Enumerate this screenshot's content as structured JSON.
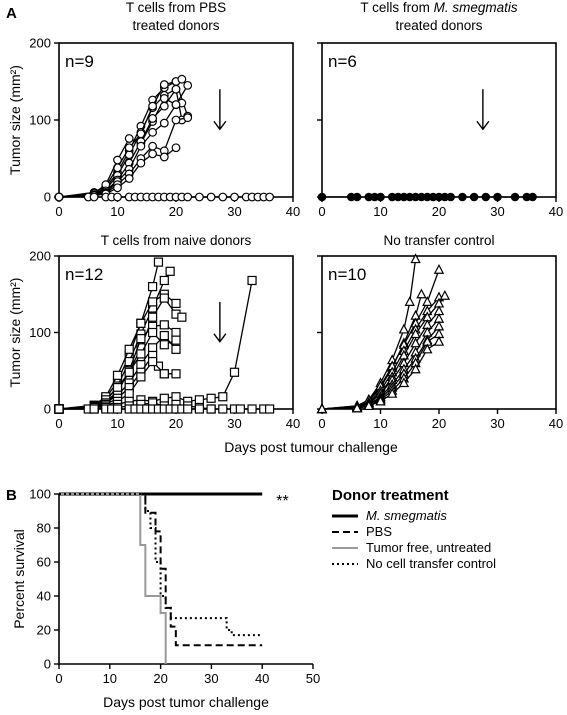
{
  "panel_a_label": "A",
  "panel_b_label": "B",
  "shared_xlabel_a": "Days post tumour challenge",
  "chart_data": [
    {
      "type": "line",
      "title_lines": [
        "T cells from PBS",
        "treated donors"
      ],
      "title_italic": "",
      "ylabel": "Tumor size (mm²)",
      "xlabel": "",
      "xlim": [
        0,
        40
      ],
      "ylim": [
        0,
        200
      ],
      "xticks": [
        0,
        10,
        20,
        30,
        40
      ],
      "yticks": [
        0,
        100,
        200
      ],
      "annotation": "n=9",
      "arrow_day": 27.5,
      "marker": "circle-open",
      "series": [
        {
          "x": [
            0,
            6,
            8,
            10,
            12,
            14,
            16,
            18,
            20,
            22
          ],
          "y": [
            0,
            4,
            12,
            32,
            60,
            92,
            126,
            142,
            150,
            105
          ]
        },
        {
          "x": [
            0,
            6,
            8,
            10,
            12,
            14,
            16,
            18,
            20
          ],
          "y": [
            0,
            3,
            10,
            28,
            55,
            84,
            116,
            132,
            140
          ]
        },
        {
          "x": [
            0,
            6,
            8,
            10,
            12,
            14,
            16,
            18,
            20,
            21
          ],
          "y": [
            0,
            6,
            14,
            38,
            64,
            82,
            118,
            146,
            150,
            153
          ]
        },
        {
          "x": [
            0,
            6,
            8,
            10,
            12,
            14,
            16,
            18,
            20,
            21
          ],
          "y": [
            0,
            5,
            16,
            48,
            76,
            70,
            98,
            128,
            120,
            122
          ]
        },
        {
          "x": [
            0,
            6,
            8,
            10,
            12,
            14,
            16,
            18,
            20,
            21
          ],
          "y": [
            0,
            2,
            8,
            22,
            44,
            72,
            102,
            118,
            140,
            100
          ]
        },
        {
          "x": [
            0,
            6,
            8,
            10,
            12,
            14,
            16,
            18,
            20,
            22
          ],
          "y": [
            0,
            3,
            6,
            20,
            36,
            66,
            84,
            96,
            120,
            145
          ]
        },
        {
          "x": [
            0,
            6,
            8,
            10,
            12,
            14,
            16,
            18,
            20,
            22
          ],
          "y": [
            0,
            2,
            5,
            16,
            30,
            50,
            66,
            60,
            100,
            103
          ]
        },
        {
          "x": [
            0,
            6,
            8,
            10,
            12,
            14,
            16,
            18,
            20
          ],
          "y": [
            0,
            2,
            4,
            12,
            24,
            44,
            56,
            52,
            64
          ]
        },
        {
          "x": [
            0,
            5,
            6,
            8,
            9,
            10,
            12,
            13,
            14,
            15,
            16,
            17,
            18,
            19,
            20,
            21,
            22,
            24,
            26,
            28,
            30,
            32,
            33,
            34,
            35,
            36
          ],
          "y": [
            0,
            0,
            0,
            0,
            0,
            0,
            0,
            0,
            0,
            0,
            0,
            0,
            0,
            0,
            0,
            0,
            0,
            0,
            0,
            0,
            0,
            0,
            0,
            0,
            0,
            0
          ]
        }
      ]
    },
    {
      "type": "line",
      "title_lines": [
        "T cells from ",
        "treated donors"
      ],
      "title_italic": "M. smegmatis",
      "ylabel": "",
      "xlabel": "",
      "xlim": [
        0,
        40
      ],
      "ylim": [
        0,
        200
      ],
      "xticks": [
        0,
        10,
        20,
        30,
        40
      ],
      "yticks": [
        0,
        100,
        200
      ],
      "annotation": "n=6",
      "arrow_day": 27.5,
      "marker": "circle-filled",
      "series": [
        {
          "x": [
            0,
            5,
            6,
            8,
            9,
            10,
            12,
            13,
            14,
            15,
            16,
            17,
            18,
            19,
            20,
            21,
            22,
            24,
            26,
            28,
            30,
            33,
            35,
            36
          ],
          "y": [
            0,
            0,
            0,
            0,
            0,
            0,
            0,
            0,
            0,
            0,
            0,
            0,
            0,
            0,
            0,
            0,
            0,
            0,
            0,
            0,
            0,
            0,
            0,
            0
          ]
        }
      ]
    },
    {
      "type": "line",
      "title_lines": [
        "T cells from naive donors"
      ],
      "title_italic": "",
      "ylabel": "Tumor size (mm²)",
      "xlabel": "",
      "xlim": [
        0,
        40
      ],
      "ylim": [
        0,
        200
      ],
      "xticks": [
        0,
        10,
        20,
        30,
        40
      ],
      "yticks": [
        0,
        100,
        200
      ],
      "annotation": "n=12",
      "arrow_day": 27.5,
      "marker": "square-open",
      "series": [
        {
          "x": [
            0,
            6,
            8,
            10,
            12,
            14,
            16,
            17
          ],
          "y": [
            0,
            4,
            14,
            36,
            70,
            112,
            160,
            192
          ]
        },
        {
          "x": [
            0,
            6,
            8,
            10,
            12,
            14,
            16,
            18,
            19
          ],
          "y": [
            0,
            3,
            10,
            30,
            62,
            98,
            132,
            168,
            180
          ]
        },
        {
          "x": [
            0,
            6,
            8,
            10,
            12,
            14,
            16,
            18,
            20
          ],
          "y": [
            0,
            5,
            16,
            44,
            78,
            112,
            140,
            150,
            138
          ]
        },
        {
          "x": [
            0,
            6,
            8,
            10,
            12,
            14,
            16,
            18,
            20,
            21
          ],
          "y": [
            0,
            2,
            8,
            24,
            48,
            80,
            120,
            145,
            124,
            120
          ]
        },
        {
          "x": [
            0,
            6,
            8,
            10,
            12,
            14,
            16,
            18,
            20
          ],
          "y": [
            0,
            2,
            6,
            22,
            50,
            92,
            108,
            110,
            100
          ]
        },
        {
          "x": [
            0,
            6,
            8,
            10,
            12,
            14,
            16,
            18,
            20
          ],
          "y": [
            0,
            4,
            12,
            28,
            48,
            72,
            100,
            84,
            90
          ]
        },
        {
          "x": [
            0,
            6,
            8,
            10,
            12,
            14,
            16,
            18,
            20
          ],
          "y": [
            0,
            3,
            8,
            18,
            34,
            58,
            80,
            96,
            78
          ]
        },
        {
          "x": [
            0,
            6,
            8,
            10,
            12,
            14,
            16,
            17,
            18,
            20
          ],
          "y": [
            0,
            2,
            6,
            14,
            28,
            48,
            70,
            56,
            46,
            46
          ]
        },
        {
          "x": [
            0,
            6,
            8,
            10,
            12,
            14,
            16,
            18
          ],
          "y": [
            0,
            2,
            4,
            10,
            20,
            42,
            62,
            46
          ]
        },
        {
          "x": [
            0,
            6,
            8,
            10,
            12,
            14,
            16,
            18,
            20,
            22,
            24,
            26,
            28,
            30,
            33
          ],
          "y": [
            0,
            0,
            2,
            6,
            10,
            12,
            10,
            14,
            16,
            10,
            12,
            14,
            16,
            48,
            168
          ]
        },
        {
          "x": [
            0,
            10,
            12,
            14,
            16,
            18,
            20,
            22,
            24,
            26
          ],
          "y": [
            0,
            2,
            4,
            6,
            8,
            4,
            6,
            4,
            2,
            0
          ]
        },
        {
          "x": [
            0,
            5,
            6,
            8,
            9,
            10,
            12,
            13,
            14,
            15,
            16,
            17,
            18,
            19,
            20,
            21,
            22,
            24,
            26,
            28,
            30,
            31,
            33,
            35,
            36
          ],
          "y": [
            0,
            0,
            0,
            0,
            0,
            0,
            0,
            0,
            0,
            0,
            0,
            0,
            0,
            0,
            0,
            0,
            0,
            0,
            0,
            0,
            0,
            0,
            0,
            0,
            0
          ]
        }
      ]
    },
    {
      "type": "line",
      "title_lines": [
        "No transfer control"
      ],
      "title_italic": "",
      "ylabel": "",
      "xlabel": "",
      "xlim": [
        0,
        40
      ],
      "ylim": [
        0,
        200
      ],
      "xticks": [
        0,
        10,
        20,
        30,
        40
      ],
      "yticks": [
        0,
        100,
        200
      ],
      "annotation": "n=10",
      "arrow_day": null,
      "marker": "triangle-open",
      "series": [
        {
          "x": [
            0,
            6,
            8,
            10,
            12,
            14,
            15,
            16
          ],
          "y": [
            0,
            4,
            12,
            34,
            64,
            104,
            140,
            196
          ]
        },
        {
          "x": [
            0,
            6,
            8,
            10,
            12,
            14,
            16,
            17
          ],
          "y": [
            0,
            3,
            10,
            28,
            54,
            86,
            122,
            150
          ]
        },
        {
          "x": [
            0,
            6,
            8,
            10,
            12,
            14,
            16,
            18,
            20
          ],
          "y": [
            0,
            4,
            12,
            30,
            56,
            84,
            112,
            140,
            182
          ]
        },
        {
          "x": [
            0,
            6,
            8,
            10,
            12,
            14,
            16,
            18,
            20
          ],
          "y": [
            0,
            2,
            8,
            24,
            48,
            76,
            104,
            128,
            146
          ]
        },
        {
          "x": [
            0,
            6,
            8,
            10,
            12,
            14,
            16,
            18,
            20,
            21
          ],
          "y": [
            0,
            2,
            7,
            20,
            42,
            70,
            98,
            120,
            138,
            148
          ]
        },
        {
          "x": [
            0,
            6,
            8,
            10,
            12,
            14,
            16,
            18,
            20
          ],
          "y": [
            0,
            3,
            8,
            20,
            38,
            60,
            86,
            110,
            128
          ]
        },
        {
          "x": [
            0,
            6,
            8,
            10,
            12,
            14,
            16,
            18,
            20
          ],
          "y": [
            0,
            2,
            6,
            16,
            32,
            52,
            74,
            100,
            118
          ]
        },
        {
          "x": [
            0,
            6,
            8,
            10,
            12,
            14,
            16,
            18,
            20
          ],
          "y": [
            0,
            2,
            5,
            14,
            28,
            46,
            66,
            90,
            108
          ]
        },
        {
          "x": [
            0,
            6,
            8,
            10,
            12,
            14,
            16,
            18,
            20
          ],
          "y": [
            0,
            1,
            4,
            12,
            24,
            40,
            60,
            88,
            98
          ]
        },
        {
          "x": [
            0,
            6,
            8,
            10,
            12,
            14,
            16,
            18,
            20
          ],
          "y": [
            0,
            1,
            4,
            10,
            20,
            34,
            52,
            78,
            88
          ]
        }
      ]
    },
    {
      "type": "line",
      "step": true,
      "title_lines": [],
      "title_italic": "",
      "ylabel": "Percent survival",
      "xlabel": "Days post tumor challenge",
      "xlim": [
        0,
        50
      ],
      "ylim": [
        0,
        100
      ],
      "xticks": [
        0,
        10,
        20,
        30,
        40,
        50
      ],
      "yticks": [
        0,
        20,
        40,
        60,
        80,
        100
      ],
      "annotation": "**",
      "legend_title": "Donor treatment",
      "legend_position": "right",
      "series": [
        {
          "name": "M. smegmatis",
          "color": "#000000",
          "dash": "solid",
          "width": 3,
          "x": [
            0,
            40
          ],
          "y": [
            100,
            100
          ]
        },
        {
          "name": "PBS",
          "color": "#000000",
          "dash": "dashed",
          "width": 2,
          "x": [
            0,
            17,
            19,
            20,
            21,
            22,
            23,
            40
          ],
          "y": [
            100,
            89,
            78,
            56,
            33,
            22,
            11,
            11
          ]
        },
        {
          "name": "Tumor free, untreated",
          "color": "#999999",
          "dash": "solid",
          "width": 2,
          "x": [
            0,
            16,
            17,
            20,
            21
          ],
          "y": [
            100,
            70,
            40,
            30,
            0
          ]
        },
        {
          "name": "No cell transfer control",
          "color": "#000000",
          "dash": "dotted",
          "width": 2,
          "x": [
            0,
            17,
            18,
            19,
            20,
            21,
            22,
            33,
            34,
            40
          ],
          "y": [
            100,
            90,
            80,
            60,
            40,
            33,
            27,
            20,
            17,
            17
          ]
        }
      ]
    }
  ]
}
